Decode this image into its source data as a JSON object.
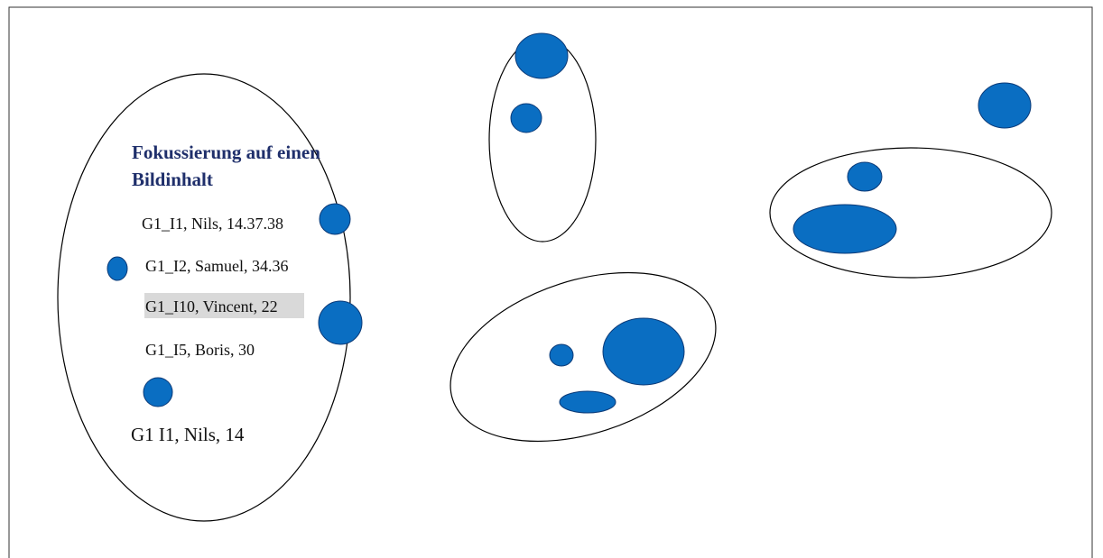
{
  "diagram": {
    "title_line_1": "Fokussierung auf einen",
    "title_line_2": "Bildinhalt",
    "entries": [
      "G1_I1, Nils, 14.37.38",
      "G1_I2, Samuel, 34.36",
      "G1_I10, Vincent, 22",
      "G1_I5, Boris, 30",
      "G1  I1, Nils, 14"
    ],
    "highlighted_entry_index": 2,
    "colors": {
      "dot_fill": "#0a6ec2",
      "dot_stroke": "#0b3a78",
      "title_text": "#1f2f6b",
      "highlight": "#d9d9d9"
    }
  }
}
